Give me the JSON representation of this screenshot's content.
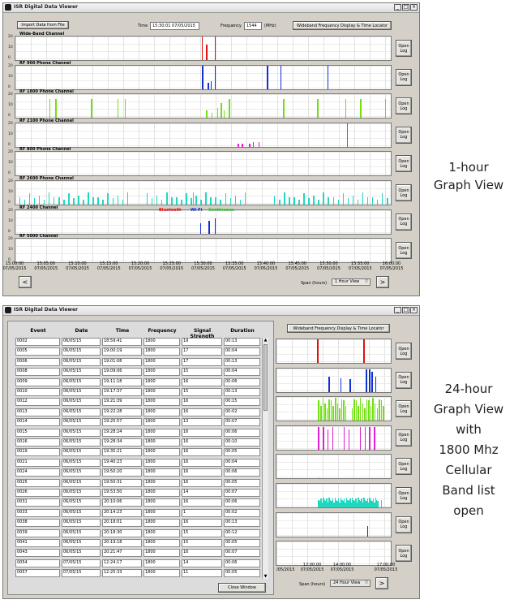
{
  "window1": {
    "title": "ISR Digital Data Viewer",
    "import_button": "Import Data from File",
    "time_label": "Time",
    "time_value": "15:30:01 07/05/2015",
    "frequency_label": "Frequency",
    "frequency_value": "1544",
    "frequency_unit": "(MHz)",
    "wideband_button": "Wideband Frequency Display & Time Locator",
    "channels": [
      {
        "name": "Wide-Band Channel",
        "yticks": [
          "20",
          "10",
          "0"
        ]
      },
      {
        "name": "RF 900 Phone Channel",
        "yticks": [
          "20",
          "10",
          "0"
        ]
      },
      {
        "name": "RF 1800 Phone Channel",
        "yticks": [
          "20",
          "10",
          "0"
        ]
      },
      {
        "name": "RF 2100 Phone Channel",
        "yticks": [
          "20",
          "10",
          "0"
        ]
      },
      {
        "name": "RF 800 Phone Channel",
        "yticks": [
          "20",
          "10",
          "0"
        ]
      },
      {
        "name": "RF 2600 Phone Channel",
        "yticks": [
          "20",
          "10",
          "0"
        ]
      },
      {
        "name": "RF 2400 Channel",
        "yticks": [
          "20",
          "10",
          "0"
        ]
      },
      {
        "name": "RF 5000 Channel",
        "yticks": [
          "20",
          "10",
          "0"
        ]
      }
    ],
    "open_log_label": "Open Log",
    "legend": {
      "bluetooth": "Bluetooth",
      "wifi": "Wi-Fi",
      "continuous": "Continuous"
    },
    "xaxis": [
      {
        "time": "15:00:00",
        "date": "07/05/2015"
      },
      {
        "time": "15:05:00",
        "date": "07/05/2015"
      },
      {
        "time": "15:10:00",
        "date": "07/05/2015"
      },
      {
        "time": "15:15:00",
        "date": "07/05/2015"
      },
      {
        "time": "15:20:00",
        "date": "07/05/2015"
      },
      {
        "time": "15:25:00",
        "date": "07/05/2015"
      },
      {
        "time": "15:30:00",
        "date": "07/05/2015"
      },
      {
        "time": "15:35:00",
        "date": "07/05/2015"
      },
      {
        "time": "15:40:00",
        "date": "07/05/2015"
      },
      {
        "time": "15:45:00",
        "date": "07/05/2015"
      },
      {
        "time": "15:50:00",
        "date": "07/05/2015"
      },
      {
        "time": "15:55:00",
        "date": "07/05/2015"
      },
      {
        "time": "16:00:00",
        "date": "07/05/2015"
      }
    ],
    "prev_button": "<",
    "next_button": ">",
    "span_label": "Span (hours)",
    "span_value": "1 Hour View"
  },
  "window2": {
    "title": "ISR Digital Data Viewer",
    "wideband_button": "Wideband Frequency Display & Time Locator",
    "open_log_label": "Open Log",
    "xaxis": [
      {
        "time": "12:00:00",
        "date": "07/05/2015"
      },
      {
        "time": "14:00:00",
        "date": "07/05/2015"
      },
      {
        "time": "17:00:00",
        "date": "07/05/2015"
      }
    ],
    "xaxis_partial_date": "/05/2015",
    "span_label": "Span (hours)",
    "span_value": "24 Hour View",
    "next_button": ">",
    "table": {
      "headers": [
        "Event",
        "Date",
        "Time",
        "Frequency",
        "Signal Strength",
        "Duration"
      ],
      "rows": [
        [
          "0002",
          "06/05/15",
          "18:59:41",
          "1800",
          "19",
          "00:13"
        ],
        [
          "0005",
          "06/05/15",
          "19:00:19",
          "1800",
          "17",
          "00:04"
        ],
        [
          "0006",
          "06/05/15",
          "19:01:08",
          "1800",
          "17",
          "00:13"
        ],
        [
          "0008",
          "06/05/15",
          "19:09:06",
          "1800",
          "15",
          "00:04"
        ],
        [
          "0009",
          "06/05/15",
          "19:11:18",
          "1800",
          "16",
          "00:06"
        ],
        [
          "0010",
          "06/05/15",
          "19:17:37",
          "1800",
          "15",
          "00:13"
        ],
        [
          "0012",
          "06/05/15",
          "19:21:39",
          "1800",
          "16",
          "00:15"
        ],
        [
          "0013",
          "06/05/15",
          "19:22:28",
          "1800",
          "16",
          "00:02"
        ],
        [
          "0014",
          "06/05/15",
          "19:25:57",
          "1800",
          "13",
          "00:07"
        ],
        [
          "0015",
          "06/05/15",
          "19:28:24",
          "1800",
          "16",
          "00:06"
        ],
        [
          "0016",
          "06/05/15",
          "19:28:34",
          "1800",
          "16",
          "00:10"
        ],
        [
          "0019",
          "06/05/15",
          "19:35:21",
          "1800",
          "16",
          "00:05"
        ],
        [
          "0021",
          "06/05/15",
          "19:40:23",
          "1800",
          "16",
          "00:04"
        ],
        [
          "0024",
          "06/05/15",
          "19:50:20",
          "1800",
          "16",
          "00:06"
        ],
        [
          "0025",
          "06/05/15",
          "19:50:31",
          "1800",
          "16",
          "00:05"
        ],
        [
          "0026",
          "06/05/15",
          "19:53:50",
          "1800",
          "14",
          "00:07"
        ],
        [
          "0031",
          "06/05/15",
          "20:10:06",
          "1800",
          "16",
          "00:06"
        ],
        [
          "0033",
          "06/05/15",
          "20:14:23",
          "1800",
          "1",
          "00:02"
        ],
        [
          "0038",
          "06/05/15",
          "20:18:01",
          "1800",
          "16",
          "00:13"
        ],
        [
          "0039",
          "06/05/15",
          "20:18:30",
          "1800",
          "15",
          "00:12"
        ],
        [
          "0041",
          "06/05/15",
          "20:19:18",
          "1800",
          "15",
          "00:05"
        ],
        [
          "0043",
          "06/05/15",
          "20:21:47",
          "1800",
          "16",
          "00:07"
        ],
        [
          "0054",
          "07/05/15",
          "12:24:17",
          "1800",
          "14",
          "00:06"
        ],
        [
          "0057",
          "07/05/15",
          "12:25:33",
          "1800",
          "11",
          "00:05"
        ]
      ],
      "close_button": "Close Window"
    }
  },
  "captions": {
    "one_hour": [
      "1-hour",
      "Graph View"
    ],
    "twenty_four": [
      "24-hour",
      "Graph View",
      "with",
      "1800 Mhz",
      "Cellular",
      "Band list",
      "open"
    ]
  },
  "colors": {
    "wideband": "#e01010",
    "rf900": "#1030d0",
    "rf1800": "#70e010",
    "rf2100": "#e020d0",
    "rf800": "#d0e020",
    "rf2600": "#20d8c0",
    "rf2400": "#1030d0"
  }
}
